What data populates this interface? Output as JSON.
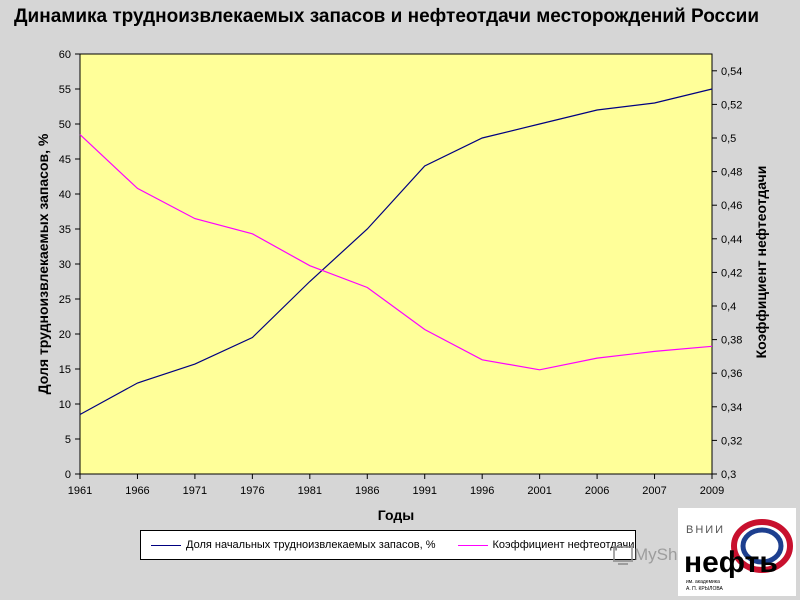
{
  "chart_data": {
    "type": "line",
    "title": "Динамика трудноизвлекаемых запасов и нефтеотдачи месторождений России",
    "xlabel": "Годы",
    "ylabel_left": "Доля  трудноизвлекаемых запасов, %",
    "ylabel_right": "Коэффициент нефтеотдачи",
    "categories": [
      "1961",
      "1966",
      "1971",
      "1976",
      "1981",
      "1986",
      "1991",
      "1996",
      "2001",
      "2006",
      "2007",
      "2009"
    ],
    "y_left": {
      "min": 0,
      "max": 60,
      "ticks": [
        "0",
        "5",
        "10",
        "15",
        "20",
        "25",
        "30",
        "35",
        "40",
        "45",
        "50",
        "55",
        "60"
      ]
    },
    "y_right": {
      "min": 0.3,
      "max": 0.55,
      "ticks": [
        "0,3",
        "0,32",
        "0,34",
        "0,36",
        "0,38",
        "0,4",
        "0,42",
        "0,44",
        "0,46",
        "0,48",
        "0,5",
        "0,52",
        "0,54"
      ]
    },
    "series": [
      {
        "name": "Доля начальных  трудноизвлекаемых запасов, %",
        "axis": "left",
        "color": "#000080",
        "values": [
          8.5,
          13,
          15.7,
          19.5,
          27.5,
          35,
          44,
          48,
          50,
          52,
          53,
          55
        ]
      },
      {
        "name": "Коэффициент нефтеотдачи",
        "axis": "right",
        "color": "#ff00ff",
        "values": [
          0.502,
          0.47,
          0.452,
          0.443,
          0.424,
          0.411,
          0.386,
          0.368,
          0.362,
          0.369,
          0.373,
          0.376
        ]
      }
    ],
    "plot_background": "#ffff99",
    "grid": false,
    "legend_position": "bottom"
  },
  "logo": {
    "top_text": "ВНИИ",
    "main_text": "нефть",
    "sub1": "им. академика",
    "sub2": "А. П. КРЫЛОВА"
  },
  "watermark": {
    "text": "MyShared"
  }
}
